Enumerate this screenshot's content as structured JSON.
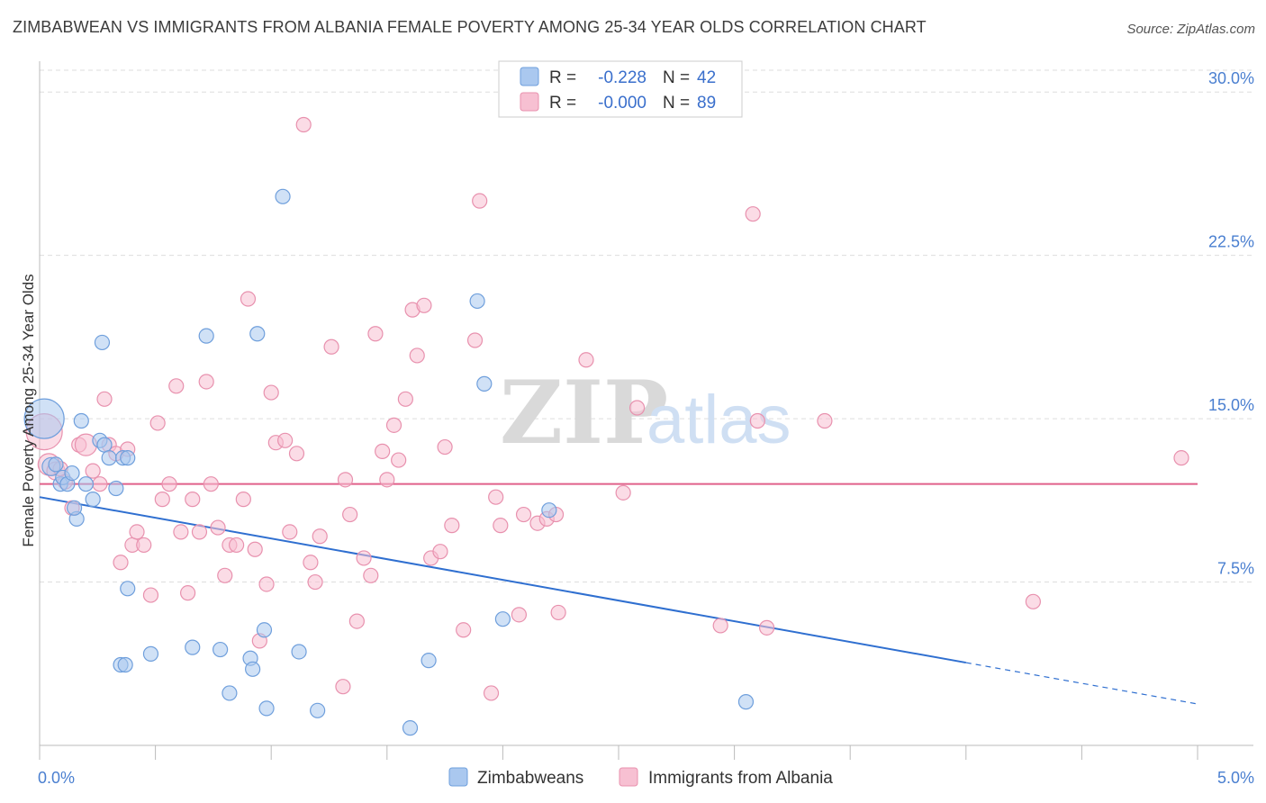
{
  "title": "ZIMBABWEAN VS IMMIGRANTS FROM ALBANIA FEMALE POVERTY AMONG 25-34 YEAR OLDS CORRELATION CHART",
  "source": "Source: ZipAtlas.com",
  "watermark": {
    "zip": "ZIP",
    "atlas": "atlas"
  },
  "colors": {
    "blue_fill": "#aac8ef",
    "blue_stroke": "#6f9fdc",
    "blue_line": "#2f6fd0",
    "pink_fill": "#f7c0d2",
    "pink_stroke": "#e891ae",
    "pink_line": "#e0608a",
    "tick_text": "#4a7fd0",
    "grid": "#dddddd"
  },
  "legend_top": {
    "rows": [
      {
        "r_label": "R =",
        "r_value": "-0.228",
        "n_label": "N =",
        "n_value": "42",
        "series": "blue"
      },
      {
        "r_label": "R =",
        "r_value": "-0.000",
        "n_label": "N =",
        "n_value": "89",
        "series": "pink"
      }
    ]
  },
  "chart_data": {
    "type": "scatter",
    "title": "ZIMBABWEAN VS IMMIGRANTS FROM ALBANIA FEMALE POVERTY AMONG 25-34 YEAR OLDS CORRELATION CHART",
    "xlabel": "",
    "ylabel": "Female Poverty Among 25-34 Year Olds",
    "xlim": [
      0,
      5
    ],
    "ylim": [
      0,
      31
    ],
    "x_tick_labels": [
      {
        "value": 0,
        "label": "0.0%"
      },
      {
        "value": 5,
        "label": "5.0%"
      }
    ],
    "y_tick_labels": [
      {
        "value": 7.5,
        "label": "7.5%"
      },
      {
        "value": 15,
        "label": "15.0%"
      },
      {
        "value": 22.5,
        "label": "22.5%"
      },
      {
        "value": 30,
        "label": "30.0%"
      }
    ],
    "grid": true,
    "legend_position": "bottom",
    "series": [
      {
        "name": "Zimbabweans",
        "color": "blue",
        "r": -0.228,
        "n": 42,
        "trend": {
          "x0": 0,
          "y0": 11.4,
          "x1": 4.0,
          "y1": 3.8,
          "dash_to_x": 5.0,
          "dash_to_y": 1.9
        },
        "points": [
          [
            0.02,
            15.0,
            22
          ],
          [
            0.05,
            12.8,
            10
          ],
          [
            0.07,
            12.9,
            8
          ],
          [
            0.09,
            12.0,
            8
          ],
          [
            0.1,
            12.3,
            8
          ],
          [
            0.12,
            12.0,
            8
          ],
          [
            0.14,
            12.5,
            8
          ],
          [
            0.16,
            10.4,
            8
          ],
          [
            0.18,
            14.9,
            8
          ],
          [
            0.2,
            12.0,
            8
          ],
          [
            0.23,
            11.3,
            8
          ],
          [
            0.26,
            14.0,
            8
          ],
          [
            0.28,
            13.8,
            8
          ],
          [
            0.3,
            13.2,
            8
          ],
          [
            0.33,
            11.8,
            8
          ],
          [
            0.36,
            13.2,
            8
          ],
          [
            0.38,
            13.2,
            8
          ],
          [
            0.15,
            10.9,
            8
          ],
          [
            0.27,
            18.5,
            8
          ],
          [
            0.72,
            18.8,
            8
          ],
          [
            0.94,
            18.9,
            8
          ],
          [
            1.05,
            25.2,
            8
          ],
          [
            1.89,
            20.4,
            8
          ],
          [
            1.92,
            16.6,
            8
          ],
          [
            0.38,
            7.2,
            8
          ],
          [
            0.35,
            3.7,
            8
          ],
          [
            0.37,
            3.7,
            8
          ],
          [
            0.48,
            4.2,
            8
          ],
          [
            0.66,
            4.5,
            8
          ],
          [
            0.78,
            4.4,
            8
          ],
          [
            0.91,
            4.0,
            8
          ],
          [
            0.92,
            3.5,
            8
          ],
          [
            0.97,
            5.3,
            8
          ],
          [
            1.12,
            4.3,
            8
          ],
          [
            0.82,
            2.4,
            8
          ],
          [
            0.98,
            1.7,
            8
          ],
          [
            1.2,
            1.6,
            8
          ],
          [
            1.68,
            3.9,
            8
          ],
          [
            1.6,
            0.8,
            8
          ],
          [
            2.0,
            5.8,
            8
          ],
          [
            2.2,
            10.8,
            8
          ],
          [
            3.05,
            2.0,
            8
          ]
        ]
      },
      {
        "name": "Immigrants from Albania",
        "color": "pink",
        "r": -0.0,
        "n": 89,
        "trend": {
          "x0": 0,
          "y0": 12.0,
          "x1": 5.0,
          "y1": 12.0
        },
        "points": [
          [
            0.02,
            14.4,
            20
          ],
          [
            0.04,
            12.9,
            12
          ],
          [
            0.07,
            12.6,
            10
          ],
          [
            0.09,
            12.7,
            8
          ],
          [
            0.11,
            12.1,
            8
          ],
          [
            0.14,
            10.9,
            8
          ],
          [
            0.17,
            13.8,
            8
          ],
          [
            0.2,
            13.8,
            12
          ],
          [
            0.23,
            12.6,
            8
          ],
          [
            0.26,
            12.0,
            8
          ],
          [
            0.28,
            15.9,
            8
          ],
          [
            0.3,
            13.8,
            8
          ],
          [
            0.33,
            13.4,
            8
          ],
          [
            0.35,
            8.4,
            8
          ],
          [
            0.38,
            13.6,
            8
          ],
          [
            0.4,
            9.2,
            8
          ],
          [
            0.42,
            9.8,
            8
          ],
          [
            0.45,
            9.2,
            8
          ],
          [
            0.48,
            6.9,
            8
          ],
          [
            0.51,
            14.8,
            8
          ],
          [
            0.53,
            11.3,
            8
          ],
          [
            0.56,
            12.0,
            8
          ],
          [
            0.59,
            16.5,
            8
          ],
          [
            0.61,
            9.8,
            8
          ],
          [
            0.64,
            7.0,
            8
          ],
          [
            0.66,
            11.3,
            8
          ],
          [
            0.69,
            9.8,
            8
          ],
          [
            0.72,
            16.7,
            8
          ],
          [
            0.74,
            12.0,
            8
          ],
          [
            0.77,
            10.0,
            8
          ],
          [
            0.8,
            7.8,
            8
          ],
          [
            0.82,
            9.2,
            8
          ],
          [
            0.85,
            9.2,
            8
          ],
          [
            0.88,
            11.3,
            8
          ],
          [
            0.9,
            20.5,
            8
          ],
          [
            0.93,
            9.0,
            8
          ],
          [
            0.95,
            4.8,
            8
          ],
          [
            0.98,
            7.4,
            8
          ],
          [
            1.0,
            16.2,
            8
          ],
          [
            1.02,
            13.9,
            8
          ],
          [
            1.06,
            14.0,
            8
          ],
          [
            1.08,
            9.8,
            8
          ],
          [
            1.11,
            13.4,
            8
          ],
          [
            1.14,
            28.5,
            8
          ],
          [
            1.17,
            8.4,
            8
          ],
          [
            1.19,
            7.5,
            8
          ],
          [
            1.21,
            9.6,
            8
          ],
          [
            1.26,
            18.3,
            8
          ],
          [
            1.31,
            2.7,
            8
          ],
          [
            1.32,
            12.2,
            8
          ],
          [
            1.34,
            10.6,
            8
          ],
          [
            1.37,
            5.7,
            8
          ],
          [
            1.4,
            8.6,
            8
          ],
          [
            1.43,
            7.8,
            8
          ],
          [
            1.45,
            18.9,
            8
          ],
          [
            1.48,
            13.5,
            8
          ],
          [
            1.5,
            12.2,
            8
          ],
          [
            1.53,
            14.7,
            8
          ],
          [
            1.55,
            13.1,
            8
          ],
          [
            1.58,
            15.9,
            8
          ],
          [
            1.61,
            20.0,
            8
          ],
          [
            1.63,
            17.9,
            8
          ],
          [
            1.66,
            20.2,
            8
          ],
          [
            1.69,
            8.6,
            8
          ],
          [
            1.73,
            8.9,
            8
          ],
          [
            1.75,
            13.7,
            8
          ],
          [
            1.78,
            10.1,
            8
          ],
          [
            1.83,
            5.3,
            8
          ],
          [
            1.88,
            18.6,
            8
          ],
          [
            1.9,
            25.0,
            8
          ],
          [
            1.95,
            2.4,
            8
          ],
          [
            1.97,
            11.4,
            8
          ],
          [
            1.99,
            10.1,
            8
          ],
          [
            2.07,
            6.0,
            8
          ],
          [
            2.09,
            10.6,
            8
          ],
          [
            2.15,
            10.2,
            8
          ],
          [
            2.19,
            10.4,
            8
          ],
          [
            2.23,
            10.6,
            8
          ],
          [
            2.24,
            6.1,
            8
          ],
          [
            2.36,
            17.7,
            8
          ],
          [
            2.52,
            11.6,
            8
          ],
          [
            2.58,
            15.5,
            8
          ],
          [
            2.94,
            5.5,
            8
          ],
          [
            3.08,
            24.4,
            8
          ],
          [
            3.1,
            14.9,
            8
          ],
          [
            3.14,
            5.4,
            8
          ],
          [
            3.39,
            14.9,
            8
          ],
          [
            4.29,
            6.6,
            8
          ],
          [
            4.93,
            13.2,
            8
          ]
        ]
      }
    ]
  },
  "legend_bottom": [
    {
      "label": "Zimbabweans",
      "series": "blue"
    },
    {
      "label": "Immigrants from Albania",
      "series": "pink"
    }
  ]
}
